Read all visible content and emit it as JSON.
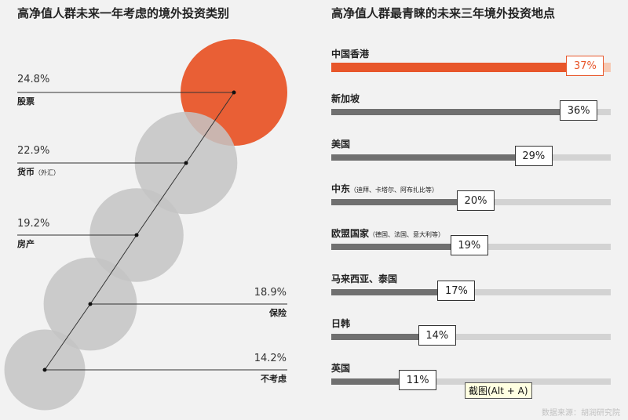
{
  "left_title": "高净值人群未来一年考虑的境外投资类别",
  "right_title": "高净值人群最青睐的未来三年境外投资地点",
  "tooltip": "截图(Alt + A)",
  "source": "数据来源：胡润研究院",
  "colors": {
    "accent": "#e8562a",
    "bubble": "#c4c4c4",
    "bar": "#707070",
    "track": "#d3d3d3"
  },
  "chart_data": [
    {
      "type": "bubble",
      "title": "高净值人群未来一年考虑的境外投资类别",
      "unit": "%",
      "categories": [
        {
          "label": "股票",
          "note": "",
          "value": 24.8,
          "value_label": "24.8%",
          "highlight": true
        },
        {
          "label": "货币",
          "note": "（外汇）",
          "value": 22.9,
          "value_label": "22.9%",
          "highlight": false
        },
        {
          "label": "房产",
          "note": "",
          "value": 19.2,
          "value_label": "19.2%",
          "highlight": false
        },
        {
          "label": "保险",
          "note": "",
          "value": 18.9,
          "value_label": "18.9%",
          "highlight": false
        },
        {
          "label": "不考虑",
          "note": "",
          "value": 14.2,
          "value_label": "14.2%",
          "highlight": false
        }
      ]
    },
    {
      "type": "bar",
      "orientation": "horizontal",
      "title": "高净值人群最青睐的未来三年境外投资地点",
      "unit": "%",
      "xlim": [
        0,
        40
      ],
      "categories": [
        {
          "label": "中国香港",
          "note": "",
          "value": 37,
          "value_label": "37%",
          "highlight": true
        },
        {
          "label": "新加坡",
          "note": "",
          "value": 36,
          "value_label": "36%",
          "highlight": false
        },
        {
          "label": "美国",
          "note": "",
          "value": 29,
          "value_label": "29%",
          "highlight": false
        },
        {
          "label": "中东",
          "note": "（迪拜、卡塔尔、阿布扎比等）",
          "value": 20,
          "value_label": "20%",
          "highlight": false
        },
        {
          "label": "欧盟国家",
          "note": "（德国、法国、意大利等）",
          "value": 19,
          "value_label": "19%",
          "highlight": false
        },
        {
          "label": "马来西亚、泰国",
          "note": "",
          "value": 17,
          "value_label": "17%",
          "highlight": false
        },
        {
          "label": "日韩",
          "note": "",
          "value": 14,
          "value_label": "14%",
          "highlight": false
        },
        {
          "label": "英国",
          "note": "",
          "value": 11,
          "value_label": "11%",
          "highlight": false
        }
      ]
    }
  ]
}
